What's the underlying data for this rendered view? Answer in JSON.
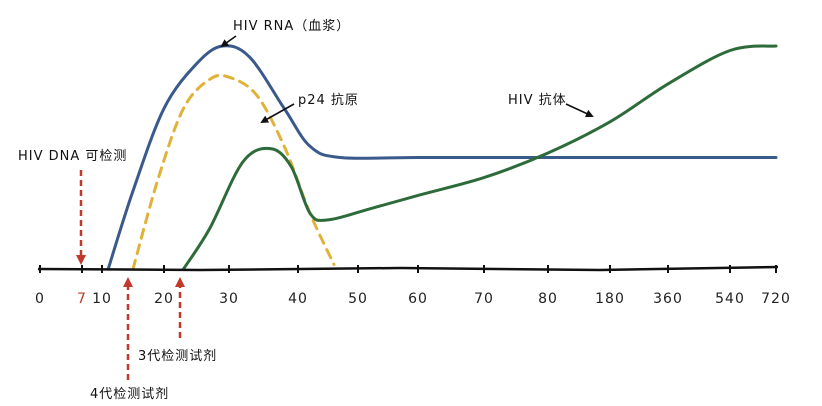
{
  "chart_data": {
    "type": "line",
    "title": "",
    "xlabel": "",
    "ylabel": "",
    "x_ticks": [
      {
        "label": "0",
        "day": 0
      },
      {
        "label": "7",
        "day": 7,
        "highlight": true
      },
      {
        "label": "10",
        "day": 10
      },
      {
        "label": "20",
        "day": 20
      },
      {
        "label": "30",
        "day": 30
      },
      {
        "label": "40",
        "day": 40
      },
      {
        "label": "50",
        "day": 50
      },
      {
        "label": "60",
        "day": 60
      },
      {
        "label": "70",
        "day": 70
      },
      {
        "label": "80",
        "day": 80
      },
      {
        "label": "180",
        "day": 180
      },
      {
        "label": "360",
        "day": 360
      },
      {
        "label": "540",
        "day": 540
      },
      {
        "label": "720",
        "day": 720
      }
    ],
    "ylim": [
      0,
      100
    ],
    "series": [
      {
        "name": "HIV RNA（血浆）",
        "style": "solid",
        "color": "#3b5a8c",
        "points": [
          [
            11,
            0
          ],
          [
            15,
            35
          ],
          [
            20,
            72
          ],
          [
            25,
            92
          ],
          [
            29,
            100
          ],
          [
            33,
            95
          ],
          [
            38,
            72
          ],
          [
            42,
            55
          ],
          [
            47,
            50
          ],
          [
            60,
            50
          ],
          [
            80,
            50
          ],
          [
            180,
            50
          ],
          [
            360,
            50
          ],
          [
            540,
            50
          ],
          [
            720,
            50
          ]
        ]
      },
      {
        "name": "p24 抗原",
        "style": "dashed",
        "color": "#e0b23a",
        "points": [
          [
            15,
            0
          ],
          [
            19,
            40
          ],
          [
            23,
            72
          ],
          [
            27,
            85
          ],
          [
            30,
            86
          ],
          [
            34,
            78
          ],
          [
            38,
            55
          ],
          [
            42,
            25
          ],
          [
            46,
            2
          ]
        ]
      },
      {
        "name": "HIV 抗体",
        "style": "solid",
        "color": "#2e6b3a",
        "points": [
          [
            23,
            0
          ],
          [
            27,
            18
          ],
          [
            32,
            48
          ],
          [
            36,
            54
          ],
          [
            39,
            46
          ],
          [
            42,
            25
          ],
          [
            45,
            22
          ],
          [
            52,
            27
          ],
          [
            60,
            33
          ],
          [
            70,
            41
          ],
          [
            80,
            52
          ],
          [
            180,
            66
          ],
          [
            360,
            83
          ],
          [
            540,
            98
          ],
          [
            720,
            100
          ]
        ]
      }
    ],
    "annotations": [
      {
        "text": "HIV DNA 可检测",
        "day": 7
      },
      {
        "text": "3代检测试剂",
        "day": 22
      },
      {
        "text": "4代检测试剂",
        "day": 15
      }
    ]
  }
}
